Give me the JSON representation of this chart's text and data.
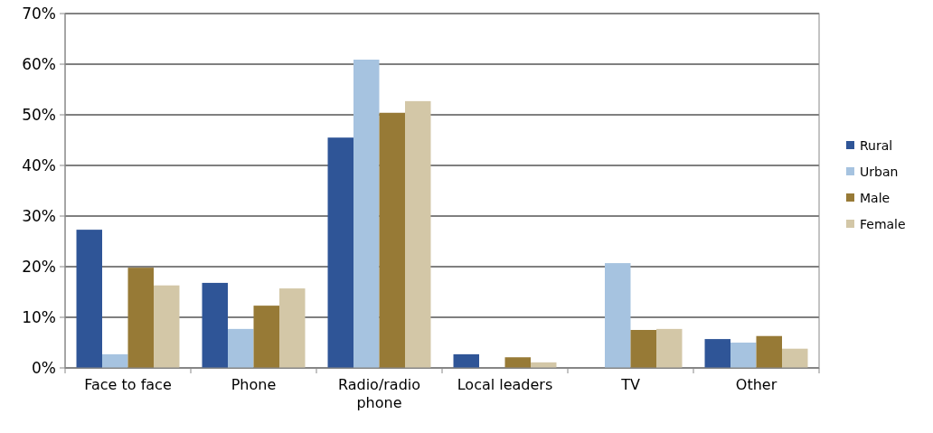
{
  "chart_data": {
    "type": "bar",
    "categories": [
      "Face to face",
      "Phone",
      "Radio/radio phone",
      "Local leaders",
      "TV",
      "Other"
    ],
    "series": [
      {
        "name": "Rural",
        "color": "#2f5597",
        "values": [
          27.3,
          16.8,
          45.5,
          2.7,
          0,
          5.7
        ]
      },
      {
        "name": "Urban",
        "color": "#a6c3e0",
        "values": [
          2.7,
          7.7,
          60.9,
          0,
          20.7,
          5.0
        ]
      },
      {
        "name": "Male",
        "color": "#977a36",
        "values": [
          19.8,
          12.3,
          50.4,
          2.1,
          7.5,
          6.3
        ]
      },
      {
        "name": "Female",
        "color": "#d3c7a7",
        "values": [
          16.3,
          15.7,
          52.7,
          1.1,
          7.7,
          3.8
        ]
      }
    ],
    "ylim": [
      0,
      70
    ],
    "yticks": [
      {
        "value": 0,
        "label": "0%"
      },
      {
        "value": 10,
        "label": "10%"
      },
      {
        "value": 20,
        "label": "20%"
      },
      {
        "value": 30,
        "label": "30%"
      },
      {
        "value": 40,
        "label": "40%"
      },
      {
        "value": 50,
        "label": "50%"
      },
      {
        "value": 60,
        "label": "60%"
      },
      {
        "value": 70,
        "label": "70%"
      }
    ],
    "grid": "y",
    "legend": "right"
  }
}
